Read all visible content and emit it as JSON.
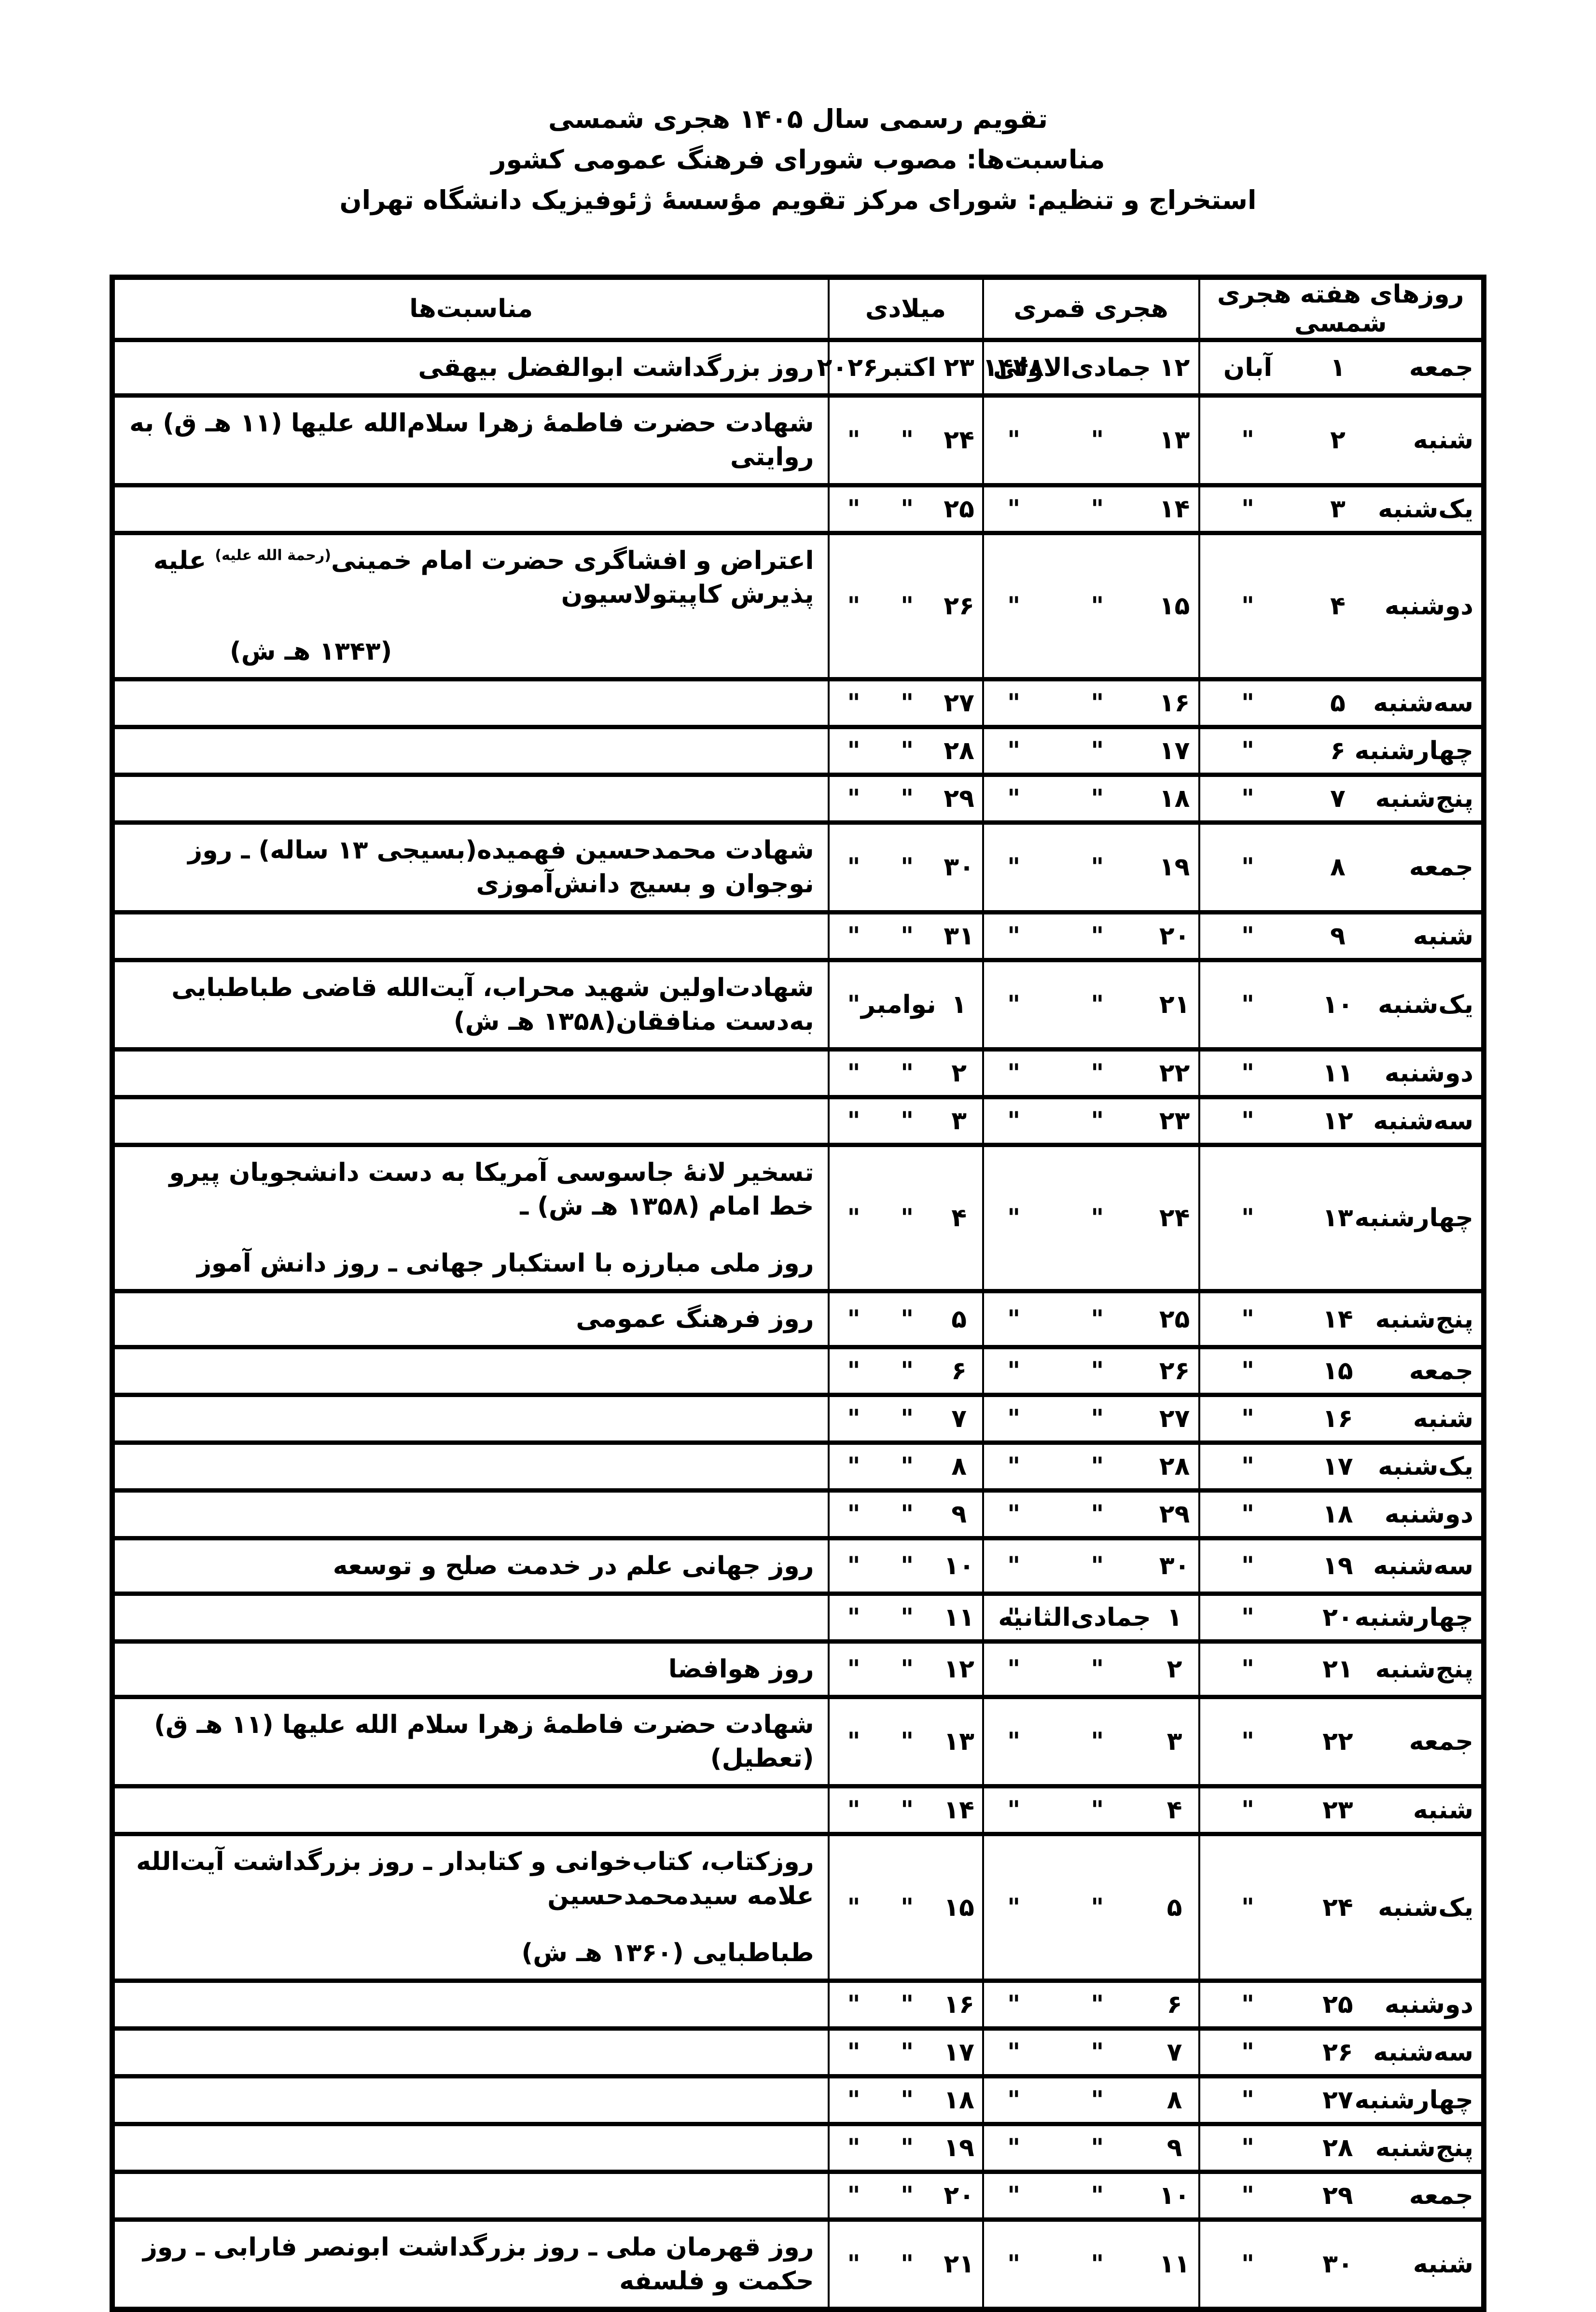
{
  "header": {
    "lines": [
      "تقویم رسمی سال ۱۴۰۵ هجری شمسی",
      "مناسبت‌ها: مصوب شورای فرهنگ عمومی کشور",
      "استخراج و تنظیم: شورای مرکز تقویم مؤسسهٔ ژئوفیزیک دانشگاه تهران"
    ]
  },
  "table": {
    "headers": {
      "weekday_shamsi": "روزهای هفته هجری شمسی",
      "qamari": "هجری قمری",
      "miladi": "میلادی",
      "occasions": "مناسبت‌ها"
    },
    "rows": [
      {
        "weekday": "جمعه",
        "shamsi_day": "۱",
        "shamsi_month": "آبان",
        "qamari_day": "۱۲",
        "qamari_month": "جمادی‌الاولی",
        "qamari_year": "۱۴۴۸",
        "miladi_day": "۲۳",
        "miladi_month": "اکتبر",
        "miladi_year": "۲۰۲۶",
        "occasion_lines": [
          "روز بزرگداشت ابوالفضل بیهقی"
        ]
      },
      {
        "weekday": "شنبه",
        "shamsi_day": "۲",
        "shamsi_month": "\"",
        "qamari_day": "۱۳",
        "qamari_month": "\"",
        "qamari_year": "\"",
        "miladi_day": "۲۴",
        "miladi_month": "\"",
        "miladi_year": "\"",
        "occasion_lines": [
          "شهادت حضرت فاطمهٔ زهرا سلام‌الله علیها (۱۱ هـ ق) به روایتی"
        ]
      },
      {
        "weekday": "یک‌شنبه",
        "shamsi_day": "۳",
        "shamsi_month": "\"",
        "qamari_day": "۱۴",
        "qamari_month": "\"",
        "qamari_year": "\"",
        "miladi_day": "۲۵",
        "miladi_month": "\"",
        "miladi_year": "\"",
        "occasion_lines": []
      },
      {
        "weekday": "دوشنبه",
        "shamsi_day": "۴",
        "shamsi_month": "\"",
        "qamari_day": "۱۵",
        "qamari_month": "\"",
        "qamari_year": "\"",
        "miladi_day": "۲۶",
        "miladi_month": "\"",
        "miladi_year": "\"",
        "occasion_lines": [
          {
            "pre": "اعتراض و افشاگری حضرت امام خمینی",
            "sup": "(رحمة الله علیه)",
            "post": " علیه پذیرش کاپیتولاسیون"
          },
          {
            "text": "(۱۳۴۳ هـ ش)",
            "align": "left"
          }
        ]
      },
      {
        "weekday": "سه‌شنبه",
        "shamsi_day": "۵",
        "shamsi_month": "\"",
        "qamari_day": "۱۶",
        "qamari_month": "\"",
        "qamari_year": "\"",
        "miladi_day": "۲۷",
        "miladi_month": "\"",
        "miladi_year": "\"",
        "occasion_lines": []
      },
      {
        "weekday": "چهارشنبه",
        "shamsi_day": "۶",
        "shamsi_month": "\"",
        "qamari_day": "۱۷",
        "qamari_month": "\"",
        "qamari_year": "\"",
        "miladi_day": "۲۸",
        "miladi_month": "\"",
        "miladi_year": "\"",
        "occasion_lines": []
      },
      {
        "weekday": "پنج‌شنبه",
        "shamsi_day": "۷",
        "shamsi_month": "\"",
        "qamari_day": "۱۸",
        "qamari_month": "\"",
        "qamari_year": "\"",
        "miladi_day": "۲۹",
        "miladi_month": "\"",
        "miladi_year": "\"",
        "occasion_lines": []
      },
      {
        "weekday": "جمعه",
        "shamsi_day": "۸",
        "shamsi_month": "\"",
        "qamari_day": "۱۹",
        "qamari_month": "\"",
        "qamari_year": "\"",
        "miladi_day": "۳۰",
        "miladi_month": "\"",
        "miladi_year": "\"",
        "occasion_lines": [
          "شهادت محمدحسین فهمیده(بسیجی ۱۳ ساله) ـ روز نوجوان و بسیج دانش‌آموزی"
        ]
      },
      {
        "weekday": "شنبه",
        "shamsi_day": "۹",
        "shamsi_month": "\"",
        "qamari_day": "۲۰",
        "qamari_month": "\"",
        "qamari_year": "\"",
        "miladi_day": "۳۱",
        "miladi_month": "\"",
        "miladi_year": "\"",
        "occasion_lines": []
      },
      {
        "weekday": "یک‌شنبه",
        "shamsi_day": "۱۰",
        "shamsi_month": "\"",
        "qamari_day": "۲۱",
        "qamari_month": "\"",
        "qamari_year": "\"",
        "miladi_day": "۱",
        "miladi_month": "نوامبر",
        "miladi_year": "\"",
        "occasion_lines": [
          "شهادت‌اولین شهید محراب، آیت‌الله قاضی طباطبایی به‌دست منافقان(۱۳۵۸ هـ ش)"
        ]
      },
      {
        "weekday": "دوشنبه",
        "shamsi_day": "۱۱",
        "shamsi_month": "\"",
        "qamari_day": "۲۲",
        "qamari_month": "\"",
        "qamari_year": "\"",
        "miladi_day": "۲",
        "miladi_month": "\"",
        "miladi_year": "\"",
        "occasion_lines": []
      },
      {
        "weekday": "سه‌شنبه",
        "shamsi_day": "۱۲",
        "shamsi_month": "\"",
        "qamari_day": "۲۳",
        "qamari_month": "\"",
        "qamari_year": "\"",
        "miladi_day": "۳",
        "miladi_month": "\"",
        "miladi_year": "\"",
        "occasion_lines": []
      },
      {
        "weekday": "چهارشنبه",
        "shamsi_day": "۱۳",
        "shamsi_month": "\"",
        "qamari_day": "۲۴",
        "qamari_month": "\"",
        "qamari_year": "\"",
        "miladi_day": "۴",
        "miladi_month": "\"",
        "miladi_year": "\"",
        "occasion_lines": [
          "تسخیر لانهٔ جاسوسی آمریکا به دست دانشجویان پیرو خط امام (۱۳۵۸ هـ ش) ـ",
          "روز ملی مبارزه با استکبار جهانی ـ روز دانش آموز"
        ]
      },
      {
        "weekday": "پنج‌شنبه",
        "shamsi_day": "۱۴",
        "shamsi_month": "\"",
        "qamari_day": "۲۵",
        "qamari_month": "\"",
        "qamari_year": "\"",
        "miladi_day": "۵",
        "miladi_month": "\"",
        "miladi_year": "\"",
        "occasion_lines": [
          "روز فرهنگ عمومی"
        ]
      },
      {
        "weekday": "جمعه",
        "shamsi_day": "۱۵",
        "shamsi_month": "\"",
        "qamari_day": "۲۶",
        "qamari_month": "\"",
        "qamari_year": "\"",
        "miladi_day": "۶",
        "miladi_month": "\"",
        "miladi_year": "\"",
        "occasion_lines": []
      },
      {
        "weekday": "شنبه",
        "shamsi_day": "۱۶",
        "shamsi_month": "\"",
        "qamari_day": "۲۷",
        "qamari_month": "\"",
        "qamari_year": "\"",
        "miladi_day": "۷",
        "miladi_month": "\"",
        "miladi_year": "\"",
        "occasion_lines": []
      },
      {
        "weekday": "یک‌شنبه",
        "shamsi_day": "۱۷",
        "shamsi_month": "\"",
        "qamari_day": "۲۸",
        "qamari_month": "\"",
        "qamari_year": "\"",
        "miladi_day": "۸",
        "miladi_month": "\"",
        "miladi_year": "\"",
        "occasion_lines": []
      },
      {
        "weekday": "دوشنبه",
        "shamsi_day": "۱۸",
        "shamsi_month": "\"",
        "qamari_day": "۲۹",
        "qamari_month": "\"",
        "qamari_year": "\"",
        "miladi_day": "۹",
        "miladi_month": "\"",
        "miladi_year": "\"",
        "occasion_lines": []
      },
      {
        "weekday": "سه‌شنبه",
        "shamsi_day": "۱۹",
        "shamsi_month": "\"",
        "qamari_day": "۳۰",
        "qamari_month": "\"",
        "qamari_year": "\"",
        "miladi_day": "۱۰",
        "miladi_month": "\"",
        "miladi_year": "\"",
        "occasion_lines": [
          "روز جهانی علم در خدمت صلح و توسعه"
        ]
      },
      {
        "weekday": "چهارشنبه",
        "shamsi_day": "۲۰",
        "shamsi_month": "\"",
        "qamari_day": "۱",
        "qamari_month": "جمادی‌الثانیه",
        "qamari_year": "\"",
        "miladi_day": "۱۱",
        "miladi_month": "\"",
        "miladi_year": "\"",
        "occasion_lines": []
      },
      {
        "weekday": "پنج‌شنبه",
        "shamsi_day": "۲۱",
        "shamsi_month": "\"",
        "qamari_day": "۲",
        "qamari_month": "\"",
        "qamari_year": "\"",
        "miladi_day": "۱۲",
        "miladi_month": "\"",
        "miladi_year": "\"",
        "occasion_lines": [
          "روز هوافضا"
        ]
      },
      {
        "weekday": "جمعه",
        "shamsi_day": "۲۲",
        "shamsi_month": "\"",
        "qamari_day": "۳",
        "qamari_month": "\"",
        "qamari_year": "\"",
        "miladi_day": "۱۳",
        "miladi_month": "\"",
        "miladi_year": "\"",
        "occasion_lines": [
          "شهادت حضرت فاطمهٔ زهرا سلام الله علیها (۱۱ هـ ق) (تعطیل)"
        ]
      },
      {
        "weekday": "شنبه",
        "shamsi_day": "۲۳",
        "shamsi_month": "\"",
        "qamari_day": "۴",
        "qamari_month": "\"",
        "qamari_year": "\"",
        "miladi_day": "۱۴",
        "miladi_month": "\"",
        "miladi_year": "\"",
        "occasion_lines": []
      },
      {
        "weekday": "یک‌شنبه",
        "shamsi_day": "۲۴",
        "shamsi_month": "\"",
        "qamari_day": "۵",
        "qamari_month": "\"",
        "qamari_year": "\"",
        "miladi_day": "۱۵",
        "miladi_month": "\"",
        "miladi_year": "\"",
        "occasion_lines": [
          "روزکتاب، کتاب‌خوانی و کتابدار ـ روز بزرگداشت آیت‌الله علامه سیدمحمدحسین",
          "طباطبایی (۱۳۶۰ هـ ش)"
        ]
      },
      {
        "weekday": "دوشنبه",
        "shamsi_day": "۲۵",
        "shamsi_month": "\"",
        "qamari_day": "۶",
        "qamari_month": "\"",
        "qamari_year": "\"",
        "miladi_day": "۱۶",
        "miladi_month": "\"",
        "miladi_year": "\"",
        "occasion_lines": []
      },
      {
        "weekday": "سه‌شنبه",
        "shamsi_day": "۲۶",
        "shamsi_month": "\"",
        "qamari_day": "۷",
        "qamari_month": "\"",
        "qamari_year": "\"",
        "miladi_day": "۱۷",
        "miladi_month": "\"",
        "miladi_year": "\"",
        "occasion_lines": []
      },
      {
        "weekday": "چهارشنبه",
        "shamsi_day": "۲۷",
        "shamsi_month": "\"",
        "qamari_day": "۸",
        "qamari_month": "\"",
        "qamari_year": "\"",
        "miladi_day": "۱۸",
        "miladi_month": "\"",
        "miladi_year": "\"",
        "occasion_lines": []
      },
      {
        "weekday": "پنج‌شنبه",
        "shamsi_day": "۲۸",
        "shamsi_month": "\"",
        "qamari_day": "۹",
        "qamari_month": "\"",
        "qamari_year": "\"",
        "miladi_day": "۱۹",
        "miladi_month": "\"",
        "miladi_year": "\"",
        "occasion_lines": []
      },
      {
        "weekday": "جمعه",
        "shamsi_day": "۲۹",
        "shamsi_month": "\"",
        "qamari_day": "۱۰",
        "qamari_month": "\"",
        "qamari_year": "\"",
        "miladi_day": "۲۰",
        "miladi_month": "\"",
        "miladi_year": "\"",
        "occasion_lines": []
      },
      {
        "weekday": "شنبه",
        "shamsi_day": "۳۰",
        "shamsi_month": "\"",
        "qamari_day": "۱۱",
        "qamari_month": "\"",
        "qamari_year": "\"",
        "miladi_day": "۲۱",
        "miladi_month": "\"",
        "miladi_year": "\"",
        "occasion_lines": [
          "روز قهرمان ملی ـ روز بزرگداشت ابونصر فارابی ـ روز حکمت و فلسفه"
        ]
      }
    ]
  }
}
